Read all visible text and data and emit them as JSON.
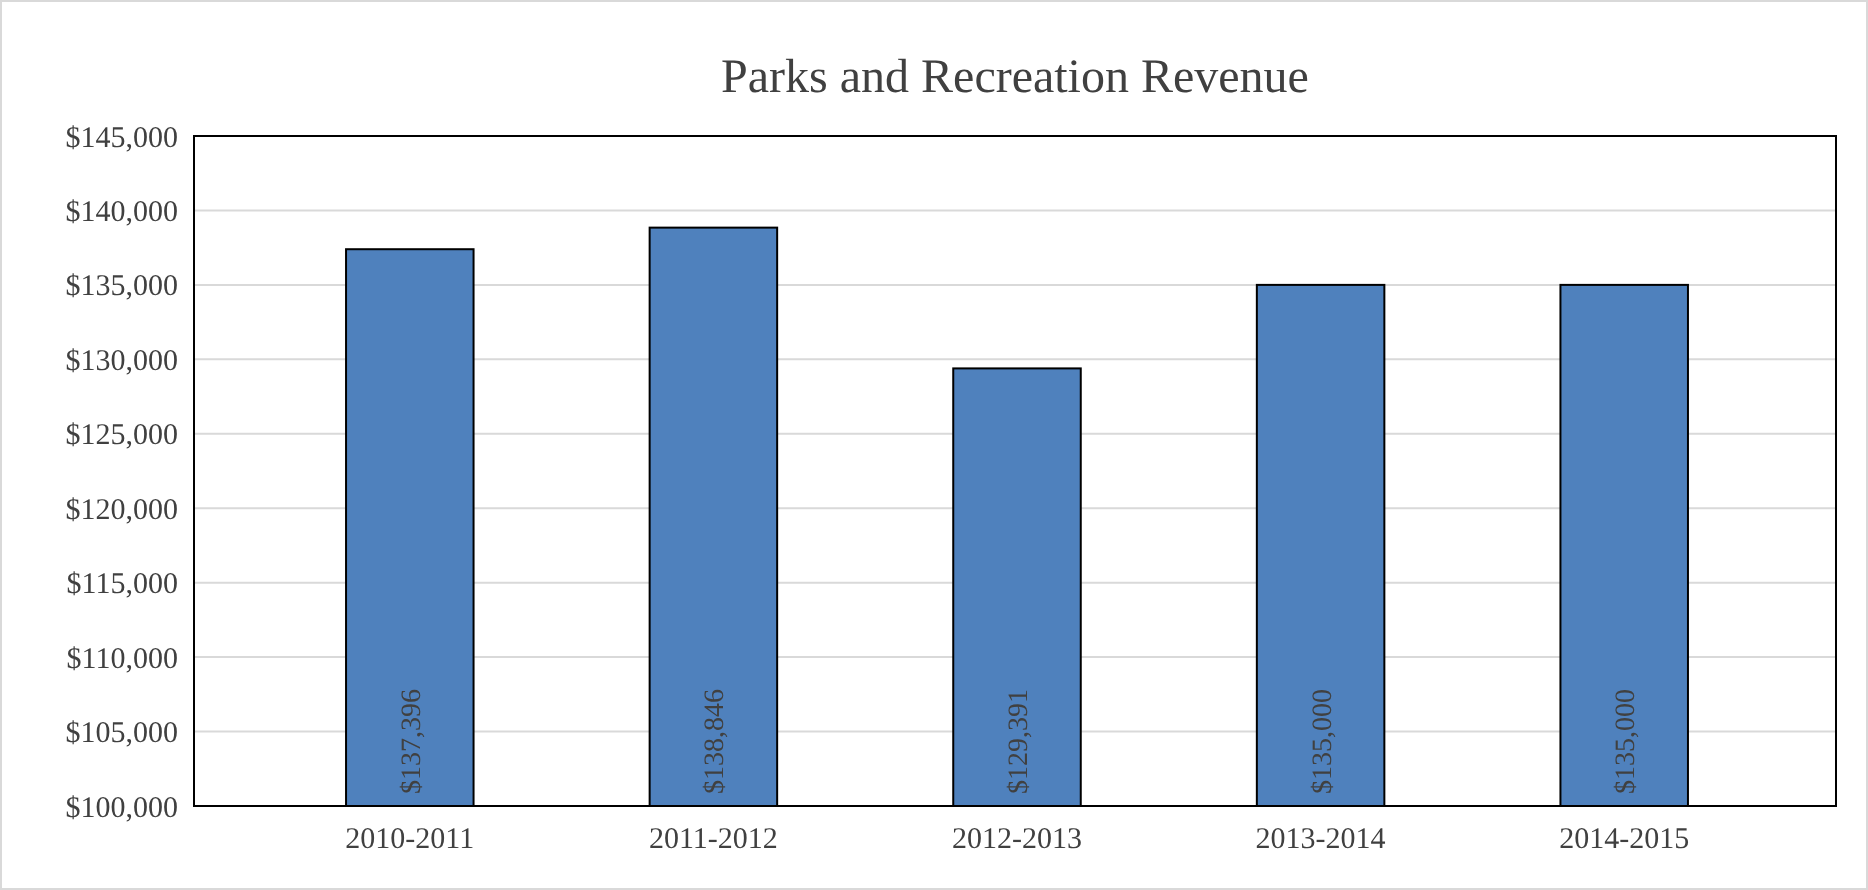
{
  "chart_data": {
    "type": "bar",
    "title": "Parks and Recreation Revenue",
    "categories": [
      "2010-2011",
      "2011-2012",
      "2012-2013",
      "2013-2014",
      "2014-2015"
    ],
    "values": [
      137396,
      138846,
      129391,
      135000,
      135000
    ],
    "value_labels": [
      "$137,396",
      "$138,846",
      "$129,391",
      "$135,000",
      "$135,000"
    ],
    "color": "#4f81bd",
    "ylim": [
      100000,
      145000
    ],
    "yticks": [
      {
        "value": 100000,
        "label": "$100,000"
      },
      {
        "value": 105000,
        "label": "$105,000"
      },
      {
        "value": 110000,
        "label": "$110,000"
      },
      {
        "value": 115000,
        "label": "$115,000"
      },
      {
        "value": 120000,
        "label": "$120,000"
      },
      {
        "value": 125000,
        "label": "$125,000"
      },
      {
        "value": 130000,
        "label": "$130,000"
      },
      {
        "value": 135000,
        "label": "$135,000"
      },
      {
        "value": 140000,
        "label": "$140,000"
      },
      {
        "value": 145000,
        "label": "$145,000"
      }
    ],
    "grid": "y"
  }
}
